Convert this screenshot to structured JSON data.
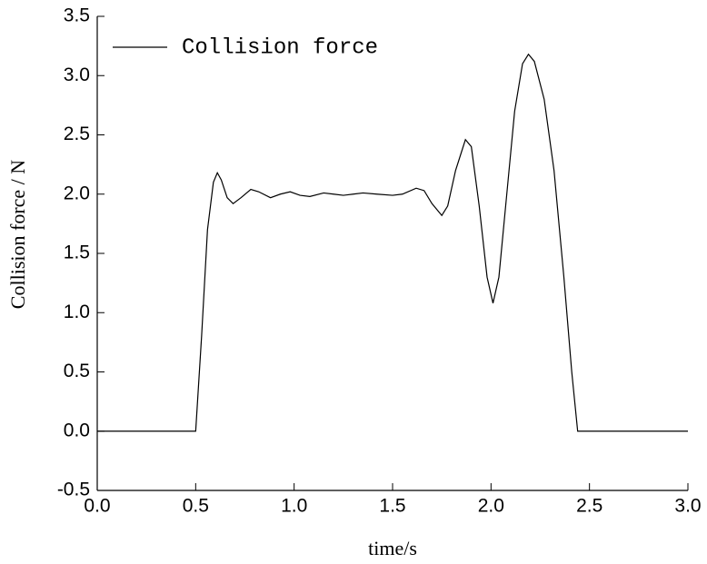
{
  "chart_data": {
    "type": "line",
    "xlabel": "time/s",
    "ylabel": "Collision force / N",
    "x": [
      0,
      0.5,
      0.53,
      0.56,
      0.59,
      0.61,
      0.63,
      0.66,
      0.69,
      0.73,
      0.78,
      0.82,
      0.88,
      0.93,
      0.98,
      1.03,
      1.08,
      1.15,
      1.2,
      1.25,
      1.3,
      1.35,
      1.42,
      1.5,
      1.55,
      1.62,
      1.66,
      1.7,
      1.75,
      1.78,
      1.82,
      1.87,
      1.9,
      1.94,
      1.98,
      2.01,
      2.04,
      2.08,
      2.12,
      2.16,
      2.19,
      2.22,
      2.27,
      2.32,
      2.37,
      2.41,
      2.44,
      3.0
    ],
    "series": [
      {
        "name": "Collision force",
        "color": "#000000",
        "values": [
          0,
          0,
          0.8,
          1.7,
          2.1,
          2.18,
          2.12,
          1.97,
          1.92,
          1.97,
          2.04,
          2.02,
          1.97,
          2.0,
          2.02,
          1.99,
          1.98,
          2.01,
          2.0,
          1.99,
          2.0,
          2.01,
          2.0,
          1.99,
          2.0,
          2.05,
          2.03,
          1.92,
          1.82,
          1.9,
          2.2,
          2.46,
          2.4,
          1.9,
          1.3,
          1.08,
          1.3,
          2.0,
          2.7,
          3.1,
          3.18,
          3.12,
          2.8,
          2.2,
          1.3,
          0.5,
          0,
          0
        ]
      }
    ],
    "xlim": [
      0,
      3.0
    ],
    "ylim": [
      -0.5,
      3.5
    ],
    "xticks": [
      {
        "value": 0,
        "label": "0.0"
      },
      0.5,
      {
        "value": 1,
        "label": "1.0"
      },
      1.5,
      {
        "value": 2,
        "label": "2.0"
      },
      2.5,
      {
        "value": 3,
        "label": "3.0"
      }
    ],
    "yticks": [
      -0.5,
      {
        "value": 0,
        "label": "0.0"
      },
      0.5,
      {
        "value": 1,
        "label": "1.0"
      },
      1.5,
      {
        "value": 2,
        "label": "2.0"
      },
      2.5,
      {
        "value": 3,
        "label": "3.0"
      },
      3.5
    ],
    "legend": "upper left"
  }
}
